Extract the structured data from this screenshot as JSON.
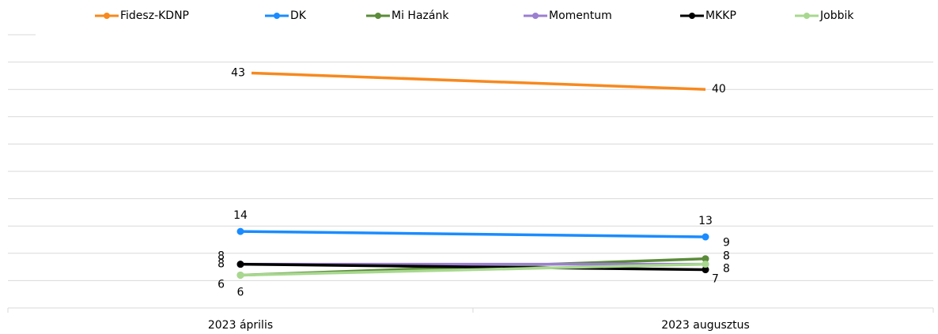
{
  "chart_data": {
    "type": "line",
    "categories": [
      "2023 április",
      "2023 augusztus"
    ],
    "series": [
      {
        "name": "Fidesz-KDNP",
        "color": "#f7891e",
        "values": [
          43,
          40
        ]
      },
      {
        "name": "DK",
        "color": "#1a8cff",
        "values": [
          14,
          13
        ]
      },
      {
        "name": "Mi Hazánk",
        "color": "#5b8c3a",
        "values": [
          6,
          9
        ]
      },
      {
        "name": "Momentum",
        "color": "#9b7fd0",
        "values": [
          8,
          8
        ]
      },
      {
        "name": "MKKP",
        "color": "#000000",
        "values": [
          8,
          7
        ]
      },
      {
        "name": "Jobbik",
        "color": "#a8d88f",
        "values": [
          6,
          8
        ]
      }
    ],
    "ylim": [
      0,
      50
    ],
    "yticks": [
      0,
      5,
      10,
      15,
      20,
      25,
      30,
      35,
      40,
      45,
      50
    ],
    "grid": true,
    "legend": "top"
  }
}
